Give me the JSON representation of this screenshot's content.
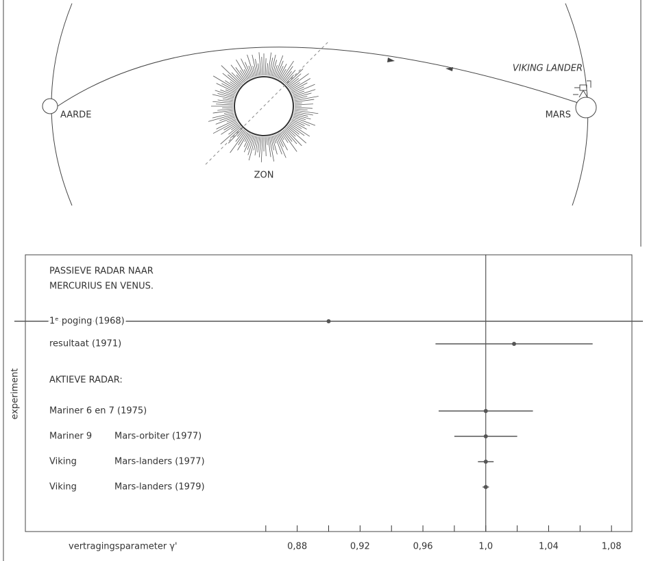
{
  "diagram": {
    "earth": "AARDE",
    "sun": "ZON",
    "mars": "MARS",
    "lander": "VIKING LANDER"
  },
  "chart_data": {
    "type": "errorbar",
    "annotations": [
      "PASSIEVE RADAR NAAR",
      "MERCURIUS EN VENUS.",
      "AKTIEVE RADAR:"
    ],
    "categories": [
      "1ᵉ poging (1968)",
      "resultaat (1971)",
      "Mariner 6 en 7 (1975)",
      "Mariner 9",
      "Viking",
      "Viking"
    ],
    "category_details": [
      null,
      null,
      null,
      "Mars-orbiter (1977)",
      "Mars-landers (1977)",
      "Mars-landers (1979)"
    ],
    "values": [
      0.9,
      1.018,
      1.0,
      1.0,
      1.0,
      1.0
    ],
    "errors": [
      0.2,
      0.05,
      0.03,
      0.02,
      0.005,
      0.002
    ],
    "color": "#555555",
    "xlabel": "vertragingsparameter γ'",
    "ylabel": "experiment",
    "xlim": [
      0.707,
      1.093
    ],
    "xticks": [
      {
        "value": 0.88,
        "label": "0,88"
      },
      {
        "value": 0.92,
        "label": "0,92"
      },
      {
        "value": 0.96,
        "label": "0,96"
      },
      {
        "value": 1.0,
        "label": "1,0"
      },
      {
        "value": 1.04,
        "label": "1,04"
      },
      {
        "value": 1.08,
        "label": "1,08"
      }
    ],
    "xminor_ticks": [
      0.86,
      0.9,
      0.94,
      0.98,
      1.02,
      1.06
    ],
    "reference_x": 1.0
  }
}
